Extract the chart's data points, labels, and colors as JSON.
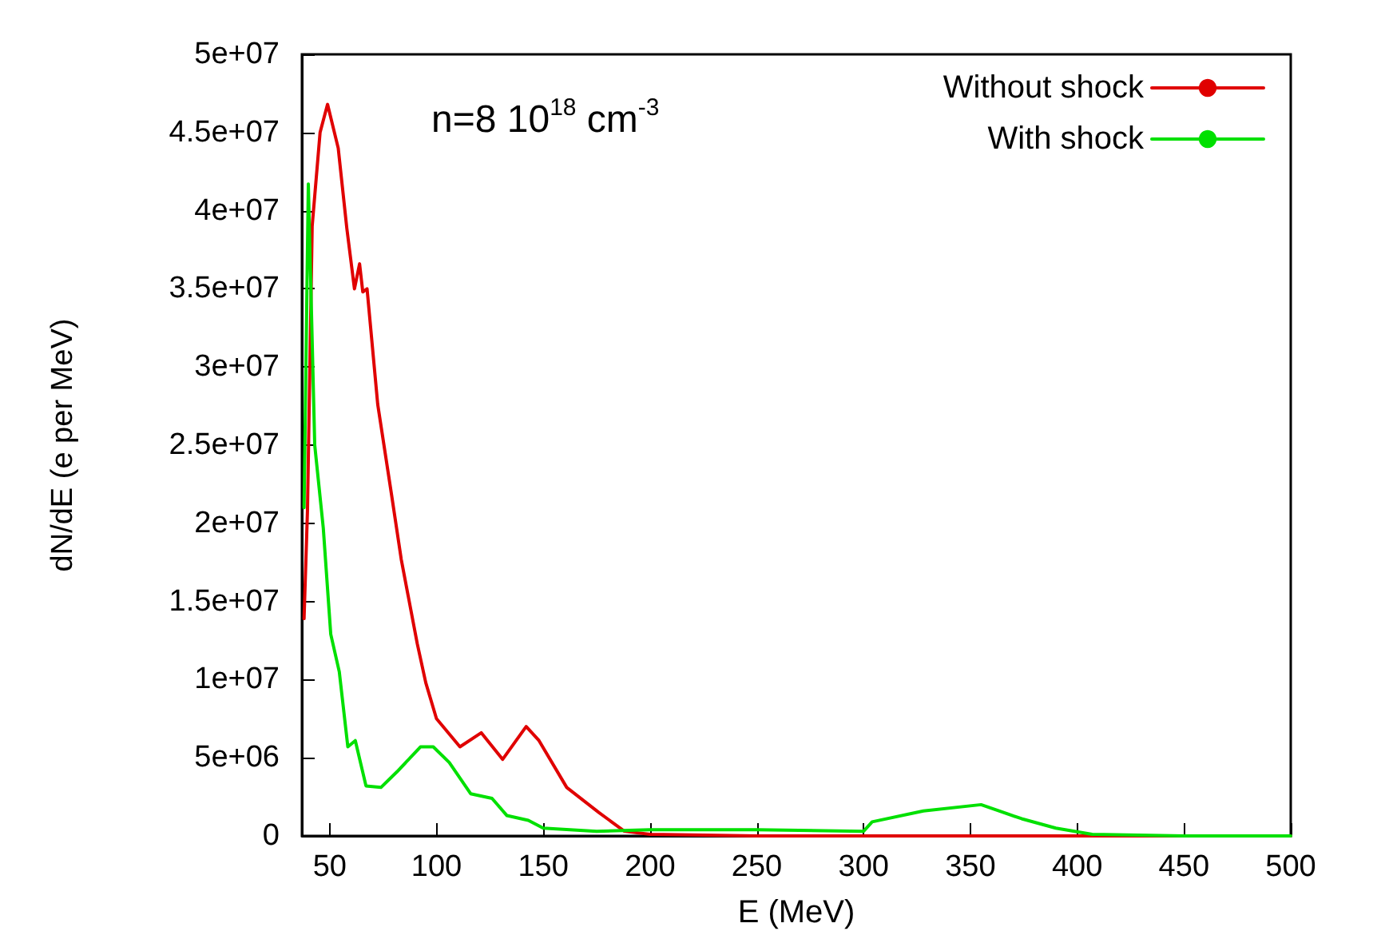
{
  "chart_data": {
    "type": "line",
    "xlabel": "E (MeV)",
    "ylabel": "dN/dE (e per MeV)",
    "annotations": [
      {
        "text": "n=8 10$^{18}$ cm$^{-3}$"
      }
    ],
    "legend": "top right",
    "grid": false,
    "marker": "none",
    "line_style": "solid",
    "xlim": [
      37,
      500
    ],
    "xticks": [
      50,
      100,
      150,
      200,
      250,
      300,
      350,
      400,
      450,
      500
    ],
    "ylim": [
      0,
      50000000
    ],
    "yticks": [
      0,
      {
        "value": 5000000,
        "label": "5e+06"
      },
      {
        "value": 10000000,
        "label": "1e+07"
      },
      {
        "value": 15000000,
        "label": "1.5e+07"
      },
      {
        "value": 20000000,
        "label": "2e+07"
      },
      {
        "value": 25000000,
        "label": "2.5e+07"
      },
      {
        "value": 30000000,
        "label": "3e+07"
      },
      {
        "value": 35000000,
        "label": "3.5e+07"
      },
      {
        "value": 40000000,
        "label": "4e+07"
      },
      {
        "value": 45000000,
        "label": "4.5e+07"
      },
      {
        "value": 50000000,
        "label": "5e+07"
      }
    ],
    "series": [
      {
        "name": "Without shock",
        "color": "#e00000",
        "x": [
          38,
          39.6,
          41.8,
          45.5,
          49,
          54,
          58,
          61.6,
          64,
          65.5,
          67.5,
          72.5,
          79,
          83.5,
          91,
          95,
          100,
          111,
          121,
          131,
          142,
          148,
          161,
          176,
          188,
          200,
          250,
          300,
          350,
          400,
          450,
          500
        ],
        "values": [
          13900000,
          20800000,
          39000000,
          45000000,
          46800000,
          44000000,
          38900000,
          35000000,
          36600000,
          34800000,
          35000000,
          27600000,
          21800000,
          17700000,
          12300000,
          9800000,
          7500000,
          5700000,
          6600000,
          4900000,
          7000000,
          6100000,
          3100000,
          1500000,
          300000,
          100000,
          0,
          0,
          0,
          0,
          0,
          0
        ]
      },
      {
        "name": "With shock",
        "color": "#00e000",
        "x": [
          38,
          40,
          43,
          47,
          50.5,
          54.5,
          58.5,
          62,
          67,
          74,
          81.5,
          92.5,
          98.5,
          106,
          116,
          126,
          133,
          143,
          150,
          175,
          200,
          250,
          300,
          304,
          328,
          355,
          374,
          390,
          407,
          450,
          500
        ],
        "values": [
          21000000,
          41700000,
          25000000,
          19700000,
          12900000,
          10500000,
          5700000,
          6100000,
          3200000,
          3100000,
          4100000,
          5700000,
          5700000,
          4700000,
          2700000,
          2400000,
          1300000,
          1000000,
          500000,
          300000,
          400000,
          400000,
          300000,
          900000,
          1600000,
          2000000,
          1100000,
          500000,
          100000,
          0,
          0
        ]
      }
    ]
  }
}
